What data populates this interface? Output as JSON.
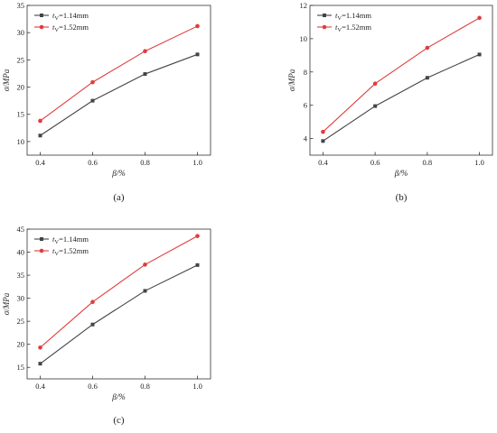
{
  "chart_data": [
    {
      "panel": "(a)",
      "type": "line",
      "xlabel": "β/%",
      "ylabel": "σ/MPa",
      "x": [
        0.4,
        0.6,
        0.8,
        1.0
      ],
      "xticks": [
        "0.4",
        "0.6",
        "0.8",
        "1.0"
      ],
      "ylim": [
        7.5,
        35
      ],
      "yticks": [
        10,
        15,
        20,
        25,
        30,
        35
      ],
      "grid": false,
      "legend_position": "top-left",
      "series": [
        {
          "label_base": "t",
          "label_sub": "V",
          "label_rest": "=1.14mm",
          "color": "#444444",
          "marker": "square",
          "values": [
            11.1,
            17.5,
            22.4,
            26.0
          ]
        },
        {
          "label_base": "t",
          "label_sub": "V",
          "label_rest": "=1.52mm",
          "color": "#e03c3c",
          "marker": "circle",
          "values": [
            13.8,
            20.9,
            26.6,
            31.2
          ]
        }
      ]
    },
    {
      "panel": "(b)",
      "type": "line",
      "xlabel": "β/%",
      "ylabel": "σ/MPa",
      "x": [
        0.4,
        0.6,
        0.8,
        1.0
      ],
      "xticks": [
        "0.4",
        "0.6",
        "0.8",
        "1.0"
      ],
      "ylim": [
        3,
        12
      ],
      "yticks": [
        4,
        6,
        8,
        10,
        12
      ],
      "grid": false,
      "legend_position": "top-left",
      "series": [
        {
          "label_base": "t",
          "label_sub": "V",
          "label_rest": "=1.14mm",
          "color": "#444444",
          "marker": "square",
          "values": [
            3.85,
            5.95,
            7.65,
            9.05
          ]
        },
        {
          "label_base": "t",
          "label_sub": "V",
          "label_rest": "=1.52mm",
          "color": "#e03c3c",
          "marker": "circle",
          "values": [
            4.4,
            7.3,
            9.45,
            11.25
          ]
        }
      ]
    },
    {
      "panel": "(c)",
      "type": "line",
      "xlabel": "β/%",
      "ylabel": "σ/MPa",
      "x": [
        0.4,
        0.6,
        0.8,
        1.0
      ],
      "xticks": [
        "0.4",
        "0.6",
        "0.8",
        "1.0"
      ],
      "ylim": [
        12.5,
        45
      ],
      "yticks": [
        15,
        20,
        25,
        30,
        35,
        40,
        45
      ],
      "grid": false,
      "legend_position": "top-left",
      "series": [
        {
          "label_base": "t",
          "label_sub": "V",
          "label_rest": "=1.14mm",
          "color": "#444444",
          "marker": "square",
          "values": [
            15.8,
            24.3,
            31.6,
            37.2
          ]
        },
        {
          "label_base": "t",
          "label_sub": "V",
          "label_rest": "=1.52mm",
          "color": "#e03c3c",
          "marker": "circle",
          "values": [
            19.3,
            29.2,
            37.3,
            43.5
          ]
        }
      ]
    }
  ]
}
